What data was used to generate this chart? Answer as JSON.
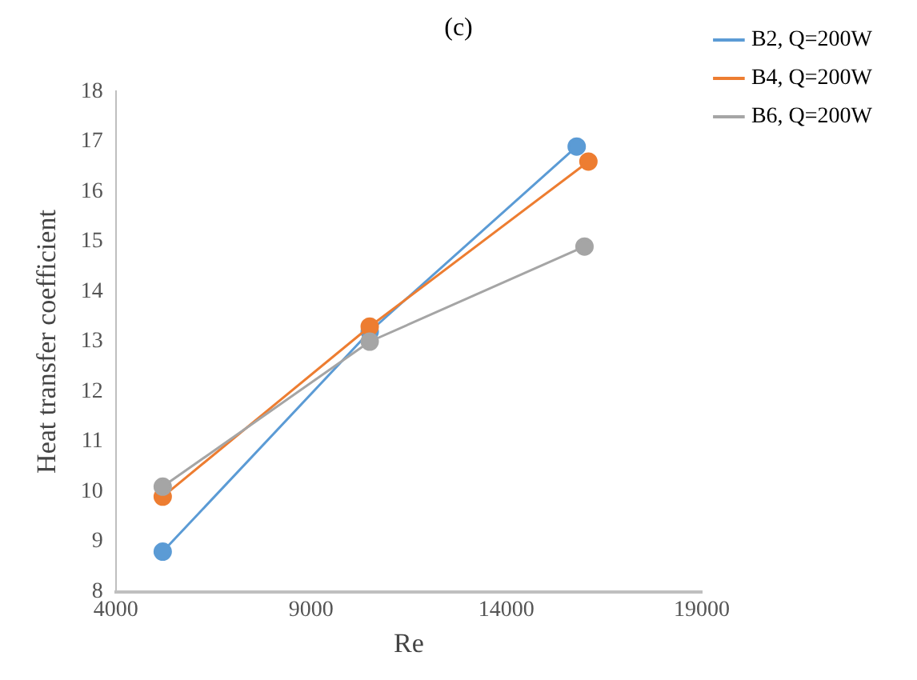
{
  "chart_data": {
    "type": "line",
    "title": "(c)",
    "xlabel": "Re",
    "ylabel": "Heat transfer coefficient",
    "xlim": [
      4000,
      19000
    ],
    "xticks": [
      4000,
      9000,
      14000,
      19000
    ],
    "ylim": [
      8,
      18
    ],
    "yticks": [
      8,
      9,
      10,
      11,
      12,
      13,
      14,
      15,
      16,
      17,
      18
    ],
    "grid": false,
    "legend": "top right",
    "marker": "circle",
    "line_style": "solid",
    "series": [
      {
        "name": "B2, Q=200W",
        "color": "#5b9bd5",
        "x": [
          5200,
          10500,
          15800
        ],
        "values": [
          8.8,
          13.2,
          16.9
        ]
      },
      {
        "name": "B4, Q=200W",
        "color": "#ed7d31",
        "x": [
          5200,
          10500,
          16100
        ],
        "values": [
          9.9,
          13.3,
          16.6
        ]
      },
      {
        "name": "B6, Q=200W",
        "color": "#a5a5a5",
        "x": [
          5200,
          10500,
          16000
        ],
        "values": [
          10.1,
          13.0,
          14.9
        ]
      }
    ]
  }
}
